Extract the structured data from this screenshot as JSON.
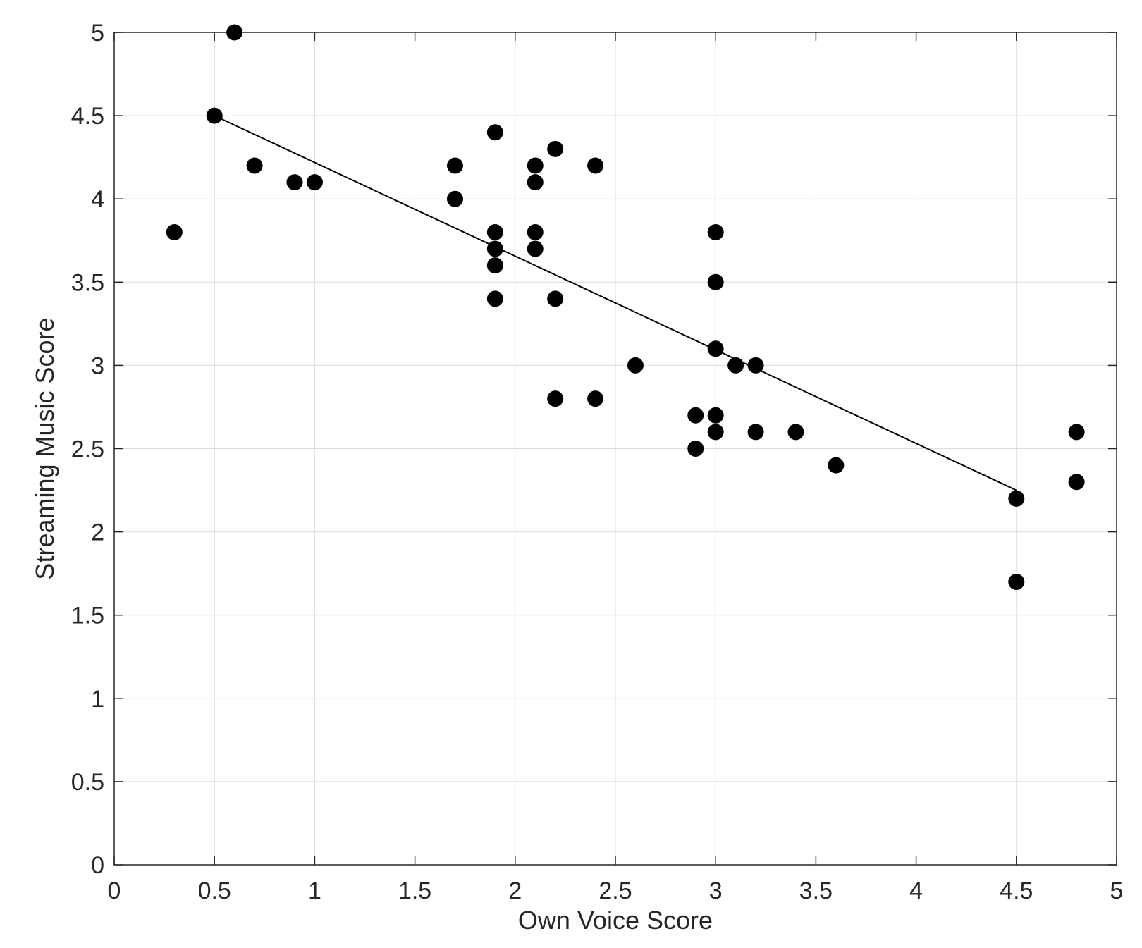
{
  "chart_data": {
    "type": "scatter",
    "xlabel": "Own Voice Score",
    "ylabel": "Streaming Music Score",
    "xlim": [
      0,
      5
    ],
    "ylim": [
      0,
      5
    ],
    "xticks": [
      0,
      0.5,
      1,
      1.5,
      2,
      2.5,
      3,
      3.5,
      4,
      4.5,
      5
    ],
    "yticks": [
      0,
      0.5,
      1,
      1.5,
      2,
      2.5,
      3,
      3.5,
      4,
      4.5,
      5
    ],
    "xtick_labels": [
      "0",
      "0.5",
      "1",
      "1.5",
      "2",
      "2.5",
      "3",
      "3.5",
      "4",
      "4.5",
      "5"
    ],
    "ytick_labels": [
      "0",
      "0.5",
      "1",
      "1.5",
      "2",
      "2.5",
      "3",
      "3.5",
      "4",
      "4.5",
      "5"
    ],
    "grid": true,
    "points": [
      {
        "x": 0.3,
        "y": 3.8
      },
      {
        "x": 0.5,
        "y": 4.5
      },
      {
        "x": 0.6,
        "y": 5.0
      },
      {
        "x": 0.7,
        "y": 4.2
      },
      {
        "x": 0.9,
        "y": 4.1
      },
      {
        "x": 1.0,
        "y": 4.1
      },
      {
        "x": 1.7,
        "y": 4.2
      },
      {
        "x": 1.7,
        "y": 4.0
      },
      {
        "x": 1.9,
        "y": 4.4
      },
      {
        "x": 1.9,
        "y": 3.8
      },
      {
        "x": 1.9,
        "y": 3.7
      },
      {
        "x": 1.9,
        "y": 3.6
      },
      {
        "x": 1.9,
        "y": 3.4
      },
      {
        "x": 2.1,
        "y": 4.2
      },
      {
        "x": 2.1,
        "y": 4.1
      },
      {
        "x": 2.1,
        "y": 3.8
      },
      {
        "x": 2.1,
        "y": 3.7
      },
      {
        "x": 2.2,
        "y": 4.3
      },
      {
        "x": 2.2,
        "y": 3.4
      },
      {
        "x": 2.2,
        "y": 2.8
      },
      {
        "x": 2.4,
        "y": 4.2
      },
      {
        "x": 2.4,
        "y": 2.8
      },
      {
        "x": 2.6,
        "y": 3.0
      },
      {
        "x": 2.9,
        "y": 2.7
      },
      {
        "x": 2.9,
        "y": 2.5
      },
      {
        "x": 3.0,
        "y": 3.8
      },
      {
        "x": 3.0,
        "y": 3.5
      },
      {
        "x": 3.0,
        "y": 3.1
      },
      {
        "x": 3.0,
        "y": 2.7
      },
      {
        "x": 3.0,
        "y": 2.6
      },
      {
        "x": 3.1,
        "y": 3.0
      },
      {
        "x": 3.2,
        "y": 3.0
      },
      {
        "x": 3.2,
        "y": 2.6
      },
      {
        "x": 3.4,
        "y": 2.6
      },
      {
        "x": 3.6,
        "y": 2.4
      },
      {
        "x": 4.5,
        "y": 2.2
      },
      {
        "x": 4.5,
        "y": 1.7
      },
      {
        "x": 4.8,
        "y": 2.6
      },
      {
        "x": 4.8,
        "y": 2.3
      }
    ],
    "fit_line": {
      "x": [
        0.5,
        4.5
      ],
      "y": [
        4.5,
        2.25
      ]
    }
  }
}
